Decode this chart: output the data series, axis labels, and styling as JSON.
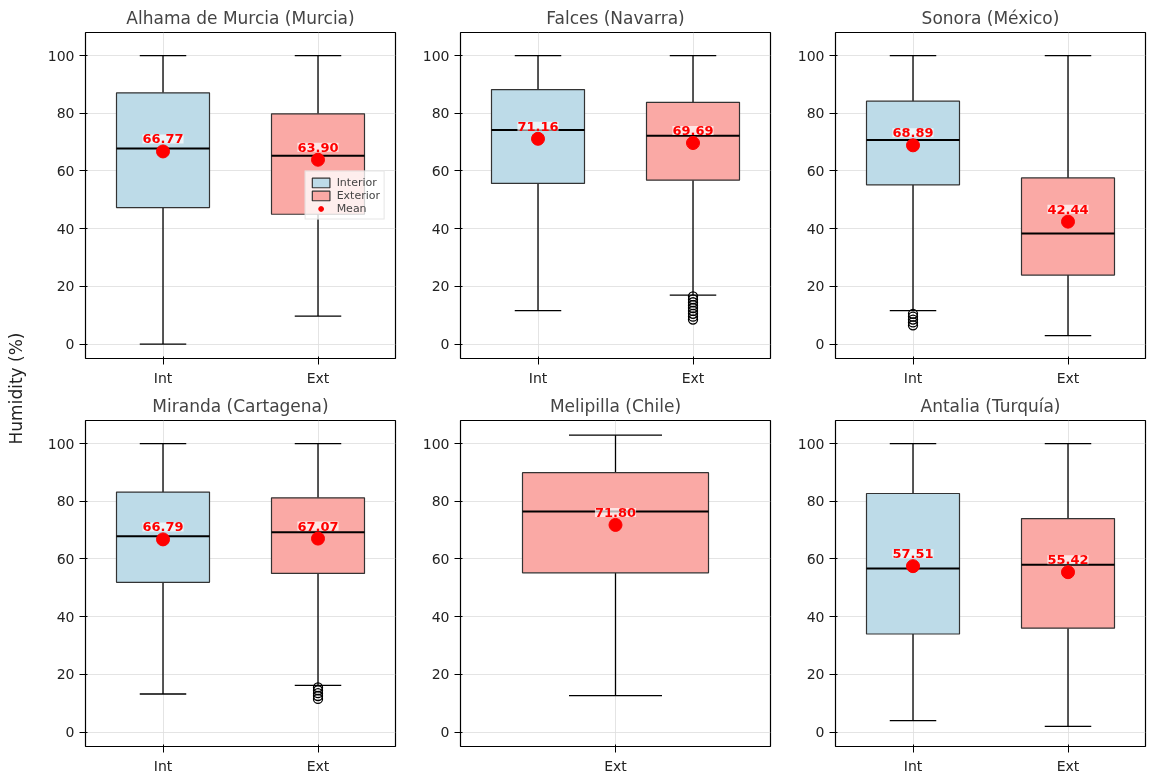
{
  "chart_data": [
    {
      "type": "box",
      "title": "Alhama de Murcia (Murcia)",
      "ylabel": "Humidity (%)",
      "categories": [
        "Int",
        "Ext"
      ],
      "ylim": [
        -5,
        108
      ],
      "yticks": [
        0,
        20,
        40,
        60,
        80,
        100
      ],
      "grid": true,
      "legend": "right",
      "series": [
        {
          "name": "Interior",
          "color": "#bddbe8",
          "boxes": [
            {
              "low": 0,
              "q1": 47.3,
              "median": 67.8,
              "q3": 87.1,
              "high": 100
            },
            null
          ]
        },
        {
          "name": "Exterior",
          "color": "#faa9a5",
          "boxes": [
            null,
            {
              "low": 9.7,
              "q1": 45,
              "median": 65.3,
              "q3": 79.8,
              "high": 100
            }
          ]
        },
        {
          "name": "Mean",
          "type": "scatter",
          "marker": "circle",
          "color": "#ff0000",
          "values": [
            66.77,
            63.9
          ],
          "value_labels": [
            "66.77",
            "63.90"
          ]
        }
      ]
    },
    {
      "type": "box",
      "title": "Falces (Navarra)",
      "categories": [
        "Int",
        "Ext"
      ],
      "ylim": [
        -5,
        108
      ],
      "yticks": [
        0,
        20,
        40,
        60,
        80,
        100
      ],
      "grid": true,
      "series": [
        {
          "color": "#bddbe8",
          "boxes": [
            {
              "low": 11.6,
              "q1": 55.7,
              "median": 74.2,
              "q3": 88.2,
              "high": 100
            },
            null
          ]
        },
        {
          "color": "#faa9a5",
          "boxes": [
            null,
            {
              "low": 17,
              "q1": 56.8,
              "median": 72.2,
              "q3": 83.8,
              "high": 100,
              "outliers": [
                8.5,
                9.5,
                10.5,
                11.5,
                12.5,
                13.5,
                14.5,
                15.5,
                16.5
              ]
            }
          ]
        },
        {
          "type": "scatter",
          "marker": "circle",
          "color": "#ff0000",
          "values": [
            71.16,
            69.69
          ],
          "value_labels": [
            "71.16",
            "69.69"
          ]
        }
      ]
    },
    {
      "type": "box",
      "title": "Sonora (México)",
      "categories": [
        "Int",
        "Ext"
      ],
      "ylim": [
        -5,
        108
      ],
      "yticks": [
        0,
        20,
        40,
        60,
        80,
        100
      ],
      "grid": true,
      "series": [
        {
          "color": "#bddbe8",
          "boxes": [
            {
              "low": 11.6,
              "q1": 55.2,
              "median": 70.7,
              "q3": 84.2,
              "high": 100,
              "outliers": [
                6.5,
                7.5,
                8.5,
                9.5,
                10.5
              ]
            },
            null
          ]
        },
        {
          "color": "#faa9a5",
          "boxes": [
            null,
            {
              "low": 2.9,
              "q1": 23.9,
              "median": 38.3,
              "q3": 57.6,
              "high": 100
            }
          ]
        },
        {
          "type": "scatter",
          "marker": "circle",
          "color": "#ff0000",
          "values": [
            68.89,
            42.44
          ],
          "value_labels": [
            "68.89",
            "42.44"
          ]
        }
      ]
    },
    {
      "type": "box",
      "title": "Miranda (Cartagena)",
      "categories": [
        "Int",
        "Ext"
      ],
      "ylim": [
        -5,
        108
      ],
      "yticks": [
        0,
        20,
        40,
        60,
        80,
        100
      ],
      "grid": true,
      "series": [
        {
          "color": "#bddbe8",
          "boxes": [
            {
              "low": 13.2,
              "q1": 51.9,
              "median": 67.9,
              "q3": 83.2,
              "high": 100
            },
            null
          ]
        },
        {
          "color": "#faa9a5",
          "boxes": [
            null,
            {
              "low": 16.2,
              "q1": 55,
              "median": 69.3,
              "q3": 81.2,
              "high": 100,
              "outliers": [
                11.5,
                12.5,
                13.5,
                14.5,
                15.5
              ]
            }
          ]
        },
        {
          "type": "scatter",
          "marker": "circle",
          "color": "#ff0000",
          "values": [
            66.79,
            67.07
          ],
          "value_labels": [
            "66.79",
            "67.07"
          ]
        }
      ]
    },
    {
      "type": "box",
      "title": "Melipilla (Chile)",
      "categories": [
        "Ext"
      ],
      "ylim": [
        -5,
        108
      ],
      "yticks": [
        0,
        20,
        40,
        60,
        80,
        100
      ],
      "grid": true,
      "series": [
        {
          "color": "#faa9a5",
          "boxes": [
            {
              "low": 12.6,
              "q1": 55.2,
              "median": 76.5,
              "q3": 89.9,
              "high": 102.9
            }
          ]
        },
        {
          "type": "scatter",
          "marker": "circle",
          "color": "#ff0000",
          "values": [
            71.8
          ],
          "value_labels": [
            "71.80"
          ]
        }
      ]
    },
    {
      "type": "box",
      "title": "Antalia (Turquía)",
      "categories": [
        "Int",
        "Ext"
      ],
      "ylim": [
        -5,
        108
      ],
      "yticks": [
        0,
        20,
        40,
        60,
        80,
        100
      ],
      "grid": true,
      "series": [
        {
          "color": "#bddbe8",
          "boxes": [
            {
              "low": 4,
              "q1": 34,
              "median": 56.7,
              "q3": 82.7,
              "high": 100
            },
            null
          ]
        },
        {
          "color": "#faa9a5",
          "boxes": [
            null,
            {
              "low": 2,
              "q1": 36,
              "median": 58,
              "q3": 74,
              "high": 100
            }
          ]
        },
        {
          "type": "scatter",
          "marker": "circle",
          "color": "#ff0000",
          "values": [
            57.51,
            55.42
          ],
          "value_labels": [
            "57.51",
            "55.42"
          ]
        }
      ]
    }
  ]
}
